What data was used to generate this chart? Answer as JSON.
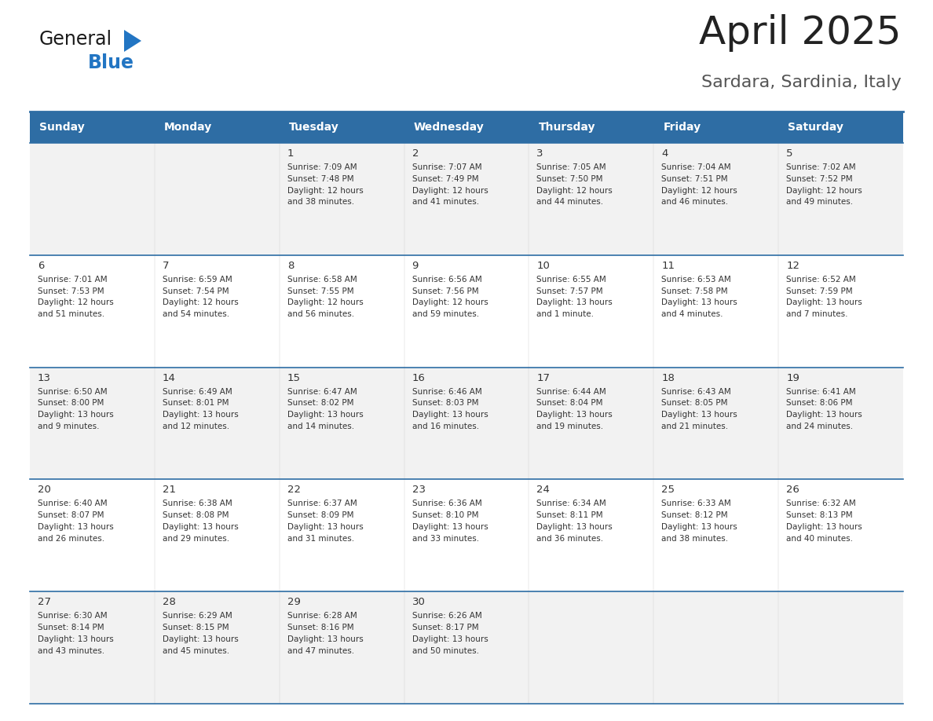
{
  "title": "April 2025",
  "subtitle": "Sardara, Sardinia, Italy",
  "days_of_week": [
    "Sunday",
    "Monday",
    "Tuesday",
    "Wednesday",
    "Thursday",
    "Friday",
    "Saturday"
  ],
  "header_bg": "#2E6DA4",
  "header_text_color": "#FFFFFF",
  "cell_bg_row0": "#F2F2F2",
  "cell_bg_row1": "#FFFFFF",
  "cell_bg_row2": "#F2F2F2",
  "cell_bg_row3": "#FFFFFF",
  "cell_bg_row4": "#F2F2F2",
  "border_color": "#2E6DA4",
  "text_color": "#333333",
  "title_color": "#222222",
  "subtitle_color": "#555555",
  "logo_color_general": "#1a1a1a",
  "logo_color_blue": "#2275C3",
  "logo_triangle_color": "#2275C3",
  "calendar_data": [
    [
      {
        "day": "",
        "info": ""
      },
      {
        "day": "",
        "info": ""
      },
      {
        "day": "1",
        "info": "Sunrise: 7:09 AM\nSunset: 7:48 PM\nDaylight: 12 hours\nand 38 minutes."
      },
      {
        "day": "2",
        "info": "Sunrise: 7:07 AM\nSunset: 7:49 PM\nDaylight: 12 hours\nand 41 minutes."
      },
      {
        "day": "3",
        "info": "Sunrise: 7:05 AM\nSunset: 7:50 PM\nDaylight: 12 hours\nand 44 minutes."
      },
      {
        "day": "4",
        "info": "Sunrise: 7:04 AM\nSunset: 7:51 PM\nDaylight: 12 hours\nand 46 minutes."
      },
      {
        "day": "5",
        "info": "Sunrise: 7:02 AM\nSunset: 7:52 PM\nDaylight: 12 hours\nand 49 minutes."
      }
    ],
    [
      {
        "day": "6",
        "info": "Sunrise: 7:01 AM\nSunset: 7:53 PM\nDaylight: 12 hours\nand 51 minutes."
      },
      {
        "day": "7",
        "info": "Sunrise: 6:59 AM\nSunset: 7:54 PM\nDaylight: 12 hours\nand 54 minutes."
      },
      {
        "day": "8",
        "info": "Sunrise: 6:58 AM\nSunset: 7:55 PM\nDaylight: 12 hours\nand 56 minutes."
      },
      {
        "day": "9",
        "info": "Sunrise: 6:56 AM\nSunset: 7:56 PM\nDaylight: 12 hours\nand 59 minutes."
      },
      {
        "day": "10",
        "info": "Sunrise: 6:55 AM\nSunset: 7:57 PM\nDaylight: 13 hours\nand 1 minute."
      },
      {
        "day": "11",
        "info": "Sunrise: 6:53 AM\nSunset: 7:58 PM\nDaylight: 13 hours\nand 4 minutes."
      },
      {
        "day": "12",
        "info": "Sunrise: 6:52 AM\nSunset: 7:59 PM\nDaylight: 13 hours\nand 7 minutes."
      }
    ],
    [
      {
        "day": "13",
        "info": "Sunrise: 6:50 AM\nSunset: 8:00 PM\nDaylight: 13 hours\nand 9 minutes."
      },
      {
        "day": "14",
        "info": "Sunrise: 6:49 AM\nSunset: 8:01 PM\nDaylight: 13 hours\nand 12 minutes."
      },
      {
        "day": "15",
        "info": "Sunrise: 6:47 AM\nSunset: 8:02 PM\nDaylight: 13 hours\nand 14 minutes."
      },
      {
        "day": "16",
        "info": "Sunrise: 6:46 AM\nSunset: 8:03 PM\nDaylight: 13 hours\nand 16 minutes."
      },
      {
        "day": "17",
        "info": "Sunrise: 6:44 AM\nSunset: 8:04 PM\nDaylight: 13 hours\nand 19 minutes."
      },
      {
        "day": "18",
        "info": "Sunrise: 6:43 AM\nSunset: 8:05 PM\nDaylight: 13 hours\nand 21 minutes."
      },
      {
        "day": "19",
        "info": "Sunrise: 6:41 AM\nSunset: 8:06 PM\nDaylight: 13 hours\nand 24 minutes."
      }
    ],
    [
      {
        "day": "20",
        "info": "Sunrise: 6:40 AM\nSunset: 8:07 PM\nDaylight: 13 hours\nand 26 minutes."
      },
      {
        "day": "21",
        "info": "Sunrise: 6:38 AM\nSunset: 8:08 PM\nDaylight: 13 hours\nand 29 minutes."
      },
      {
        "day": "22",
        "info": "Sunrise: 6:37 AM\nSunset: 8:09 PM\nDaylight: 13 hours\nand 31 minutes."
      },
      {
        "day": "23",
        "info": "Sunrise: 6:36 AM\nSunset: 8:10 PM\nDaylight: 13 hours\nand 33 minutes."
      },
      {
        "day": "24",
        "info": "Sunrise: 6:34 AM\nSunset: 8:11 PM\nDaylight: 13 hours\nand 36 minutes."
      },
      {
        "day": "25",
        "info": "Sunrise: 6:33 AM\nSunset: 8:12 PM\nDaylight: 13 hours\nand 38 minutes."
      },
      {
        "day": "26",
        "info": "Sunrise: 6:32 AM\nSunset: 8:13 PM\nDaylight: 13 hours\nand 40 minutes."
      }
    ],
    [
      {
        "day": "27",
        "info": "Sunrise: 6:30 AM\nSunset: 8:14 PM\nDaylight: 13 hours\nand 43 minutes."
      },
      {
        "day": "28",
        "info": "Sunrise: 6:29 AM\nSunset: 8:15 PM\nDaylight: 13 hours\nand 45 minutes."
      },
      {
        "day": "29",
        "info": "Sunrise: 6:28 AM\nSunset: 8:16 PM\nDaylight: 13 hours\nand 47 minutes."
      },
      {
        "day": "30",
        "info": "Sunrise: 6:26 AM\nSunset: 8:17 PM\nDaylight: 13 hours\nand 50 minutes."
      },
      {
        "day": "",
        "info": ""
      },
      {
        "day": "",
        "info": ""
      },
      {
        "day": "",
        "info": ""
      }
    ]
  ]
}
